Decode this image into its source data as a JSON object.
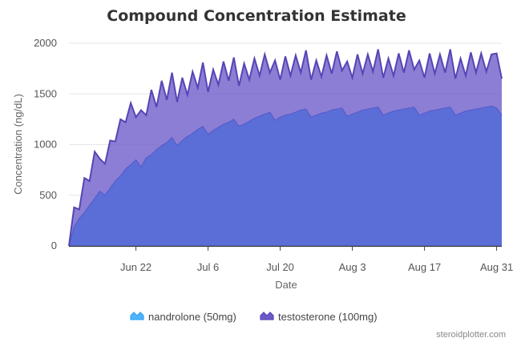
{
  "chart_data": {
    "type": "area",
    "title": "Compound Concentration Estimate",
    "xlabel": "Date",
    "ylabel": "Concentration (ng/dL)",
    "ylim": [
      0,
      2000
    ],
    "yticks": [
      0,
      500,
      1000,
      1500,
      2000
    ],
    "xticks": [
      {
        "date": "2024-06-22",
        "label": "Jun 22"
      },
      {
        "date": "2024-07-06",
        "label": "Jul 6"
      },
      {
        "date": "2024-07-20",
        "label": "Jul 20"
      },
      {
        "date": "2024-08-03",
        "label": "Aug 3"
      },
      {
        "date": "2024-08-17",
        "label": "Aug 17"
      },
      {
        "date": "2024-08-31",
        "label": "Aug 31"
      }
    ],
    "xlim": [
      "2024-06-09",
      "2024-09-01"
    ],
    "grid": true,
    "stacked": true,
    "legend_position": "bottom",
    "x": [
      "2024-06-09",
      "2024-06-10",
      "2024-06-11",
      "2024-06-12",
      "2024-06-13",
      "2024-06-14",
      "2024-06-15",
      "2024-06-16",
      "2024-06-17",
      "2024-06-18",
      "2024-06-19",
      "2024-06-20",
      "2024-06-21",
      "2024-06-22",
      "2024-06-23",
      "2024-06-24",
      "2024-06-25",
      "2024-06-26",
      "2024-06-27",
      "2024-06-28",
      "2024-06-29",
      "2024-06-30",
      "2024-07-01",
      "2024-07-02",
      "2024-07-03",
      "2024-07-04",
      "2024-07-05",
      "2024-07-06",
      "2024-07-07",
      "2024-07-08",
      "2024-07-09",
      "2024-07-10",
      "2024-07-11",
      "2024-07-12",
      "2024-07-13",
      "2024-07-14",
      "2024-07-15",
      "2024-07-16",
      "2024-07-17",
      "2024-07-18",
      "2024-07-19",
      "2024-07-20",
      "2024-07-21",
      "2024-07-22",
      "2024-07-23",
      "2024-07-24",
      "2024-07-25",
      "2024-07-26",
      "2024-07-27",
      "2024-07-28",
      "2024-07-29",
      "2024-07-30",
      "2024-07-31",
      "2024-08-01",
      "2024-08-02",
      "2024-08-03",
      "2024-08-04",
      "2024-08-05",
      "2024-08-06",
      "2024-08-07",
      "2024-08-08",
      "2024-08-09",
      "2024-08-10",
      "2024-08-11",
      "2024-08-12",
      "2024-08-13",
      "2024-08-14",
      "2024-08-15",
      "2024-08-16",
      "2024-08-17",
      "2024-08-18",
      "2024-08-19",
      "2024-08-20",
      "2024-08-21",
      "2024-08-22",
      "2024-08-23",
      "2024-08-24",
      "2024-08-25",
      "2024-08-26",
      "2024-08-27",
      "2024-08-28",
      "2024-08-29",
      "2024-08-30",
      "2024-08-31",
      "2024-09-01"
    ],
    "series": [
      {
        "name": "nandrolone (50mg)",
        "color": "#5b6ed8",
        "values": [
          0,
          190,
          270,
          330,
          400,
          470,
          540,
          500,
          570,
          640,
          690,
          760,
          800,
          850,
          780,
          870,
          900,
          950,
          990,
          1020,
          1070,
          990,
          1040,
          1080,
          1110,
          1150,
          1180,
          1100,
          1140,
          1170,
          1200,
          1220,
          1250,
          1180,
          1200,
          1230,
          1260,
          1280,
          1300,
          1320,
          1240,
          1270,
          1290,
          1300,
          1320,
          1340,
          1350,
          1270,
          1290,
          1310,
          1320,
          1340,
          1350,
          1360,
          1280,
          1300,
          1320,
          1340,
          1350,
          1360,
          1370,
          1290,
          1310,
          1330,
          1340,
          1350,
          1360,
          1370,
          1290,
          1310,
          1330,
          1340,
          1350,
          1360,
          1370,
          1290,
          1310,
          1330,
          1340,
          1350,
          1360,
          1370,
          1380,
          1360,
          1290
        ]
      },
      {
        "name": "testosterone (100mg)",
        "color": "#6a5ac8",
        "values": [
          0,
          190,
          90,
          340,
          240,
          460,
          320,
          310,
          470,
          390,
          560,
          460,
          610,
          420,
          560,
          420,
          640,
          420,
          640,
          420,
          640,
          430,
          620,
          410,
          610,
          410,
          630,
          420,
          600,
          420,
          620,
          410,
          610,
          400,
          600,
          410,
          590,
          400,
          590,
          390,
          590,
          370,
          580,
          380,
          560,
          370,
          580,
          370,
          540,
          360,
          560,
          360,
          570,
          370,
          540,
          360,
          570,
          360,
          540,
          360,
          570,
          370,
          540,
          350,
          560,
          360,
          570,
          370,
          540,
          350,
          570,
          360,
          540,
          350,
          570,
          360,
          540,
          350,
          570,
          360,
          540,
          350,
          510,
          540,
          360
        ]
      }
    ],
    "watermark": "steroidplotter.com"
  }
}
